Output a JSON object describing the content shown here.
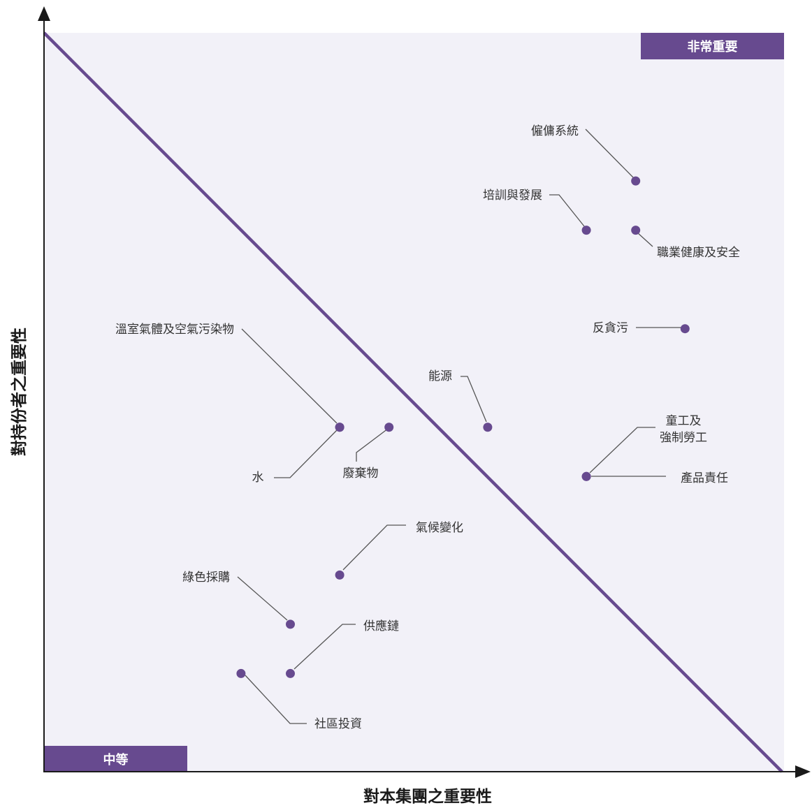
{
  "chart_data": {
    "type": "scatter",
    "xlabel": "對本集團之重要性",
    "ylabel": "對持份者之重要性",
    "xlim": [
      0,
      15
    ],
    "ylim": [
      0,
      15
    ],
    "grid": false,
    "threshold_line": {
      "from": [
        0,
        15
      ],
      "to": [
        15,
        0
      ]
    },
    "zones": [
      {
        "label": "非常重要",
        "position": "top-right"
      },
      {
        "label": "中等",
        "position": "bottom-left"
      }
    ],
    "points": [
      {
        "name": "僱傭系統",
        "x": 12,
        "y": 12
      },
      {
        "name": "培訓與發展",
        "x": 11,
        "y": 11
      },
      {
        "name": "職業健康及安全",
        "x": 12,
        "y": 11
      },
      {
        "name": "反貪污",
        "x": 13,
        "y": 9
      },
      {
        "name": "能源",
        "x": 9,
        "y": 7
      },
      {
        "name": "溫室氣體及空氣污染物",
        "x": 6,
        "y": 7
      },
      {
        "name": "廢棄物",
        "x": 7,
        "y": 7
      },
      {
        "name": "水",
        "x": 6,
        "y": 7
      },
      {
        "name": "童工及\n強制勞工",
        "x": 11,
        "y": 6
      },
      {
        "name": "產品責任",
        "x": 11,
        "y": 6
      },
      {
        "name": "氣候變化",
        "x": 6,
        "y": 4
      },
      {
        "name": "綠色採購",
        "x": 5,
        "y": 3
      },
      {
        "name": "供應鏈",
        "x": 5,
        "y": 2
      },
      {
        "name": "社區投資",
        "x": 4,
        "y": 2
      }
    ]
  },
  "colors": {
    "accent": "#674a8f",
    "plot_background": "#f2f1f8",
    "axis": "#1a1a1a",
    "leader_line": "#555555",
    "label_text": "#333333",
    "corner_text": "#ffffff"
  }
}
